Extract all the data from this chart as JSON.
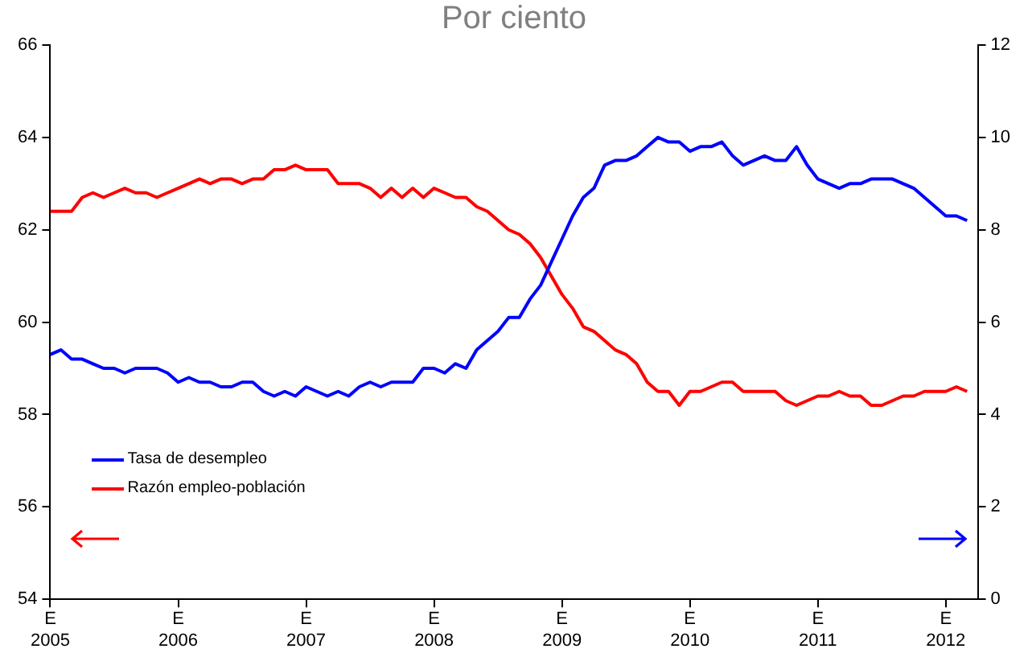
{
  "chart_data": {
    "type": "line",
    "title": "Por ciento",
    "x": [
      "2005-01",
      "2005-02",
      "2005-03",
      "2005-04",
      "2005-05",
      "2005-06",
      "2005-07",
      "2005-08",
      "2005-09",
      "2005-10",
      "2005-11",
      "2005-12",
      "2006-01",
      "2006-02",
      "2006-03",
      "2006-04",
      "2006-05",
      "2006-06",
      "2006-07",
      "2006-08",
      "2006-09",
      "2006-10",
      "2006-11",
      "2006-12",
      "2007-01",
      "2007-02",
      "2007-03",
      "2007-04",
      "2007-05",
      "2007-06",
      "2007-07",
      "2007-08",
      "2007-09",
      "2007-10",
      "2007-11",
      "2007-12",
      "2008-01",
      "2008-02",
      "2008-03",
      "2008-04",
      "2008-05",
      "2008-06",
      "2008-07",
      "2008-08",
      "2008-09",
      "2008-10",
      "2008-11",
      "2008-12",
      "2009-01",
      "2009-02",
      "2009-03",
      "2009-04",
      "2009-05",
      "2009-06",
      "2009-07",
      "2009-08",
      "2009-09",
      "2009-10",
      "2009-11",
      "2009-12",
      "2010-01",
      "2010-02",
      "2010-03",
      "2010-04",
      "2010-05",
      "2010-06",
      "2010-07",
      "2010-08",
      "2010-09",
      "2010-10",
      "2010-11",
      "2010-12",
      "2011-01",
      "2011-02",
      "2011-03",
      "2011-04",
      "2011-05",
      "2011-06",
      "2011-07",
      "2011-08",
      "2011-09",
      "2011-10",
      "2011-11",
      "2011-12",
      "2012-01",
      "2012-02",
      "2012-03"
    ],
    "series": [
      {
        "name": "Tasa de desempleo",
        "color": "#0000ff",
        "axis": "y2",
        "values": [
          5.3,
          5.4,
          5.2,
          5.2,
          5.1,
          5.0,
          5.0,
          4.9,
          5.0,
          5.0,
          5.0,
          4.9,
          4.7,
          4.8,
          4.7,
          4.7,
          4.6,
          4.6,
          4.7,
          4.7,
          4.5,
          4.4,
          4.5,
          4.4,
          4.6,
          4.5,
          4.4,
          4.5,
          4.4,
          4.6,
          4.7,
          4.6,
          4.7,
          4.7,
          4.7,
          5.0,
          5.0,
          4.9,
          5.1,
          5.0,
          5.4,
          5.6,
          5.8,
          6.1,
          6.1,
          6.5,
          6.8,
          7.3,
          7.8,
          8.3,
          8.7,
          8.9,
          9.4,
          9.5,
          9.5,
          9.6,
          9.8,
          10.0,
          9.9,
          9.9,
          9.7,
          9.8,
          9.8,
          9.9,
          9.6,
          9.4,
          9.5,
          9.6,
          9.5,
          9.5,
          9.8,
          9.4,
          9.1,
          9.0,
          8.9,
          9.0,
          9.0,
          9.1,
          9.1,
          9.1,
          9.0,
          8.9,
          8.7,
          8.5,
          8.3,
          8.3,
          8.2
        ]
      },
      {
        "name": "Razón empleo-población",
        "color": "#ff0000",
        "values": [
          62.4,
          62.4,
          62.4,
          62.7,
          62.8,
          62.7,
          62.8,
          62.9,
          62.8,
          62.8,
          62.7,
          62.8,
          62.9,
          63.0,
          63.1,
          63.0,
          63.1,
          63.1,
          63.0,
          63.1,
          63.1,
          63.3,
          63.3,
          63.4,
          63.3,
          63.3,
          63.3,
          63.0,
          63.0,
          63.0,
          62.9,
          62.7,
          62.9,
          62.7,
          62.9,
          62.7,
          62.9,
          62.8,
          62.7,
          62.7,
          62.5,
          62.4,
          62.2,
          62.0,
          61.9,
          61.7,
          61.4,
          61.0,
          60.6,
          60.3,
          59.9,
          59.8,
          59.6,
          59.4,
          59.3,
          59.1,
          58.7,
          58.5,
          58.5,
          58.2,
          58.5,
          58.5,
          58.6,
          58.7,
          58.7,
          58.5,
          58.5,
          58.5,
          58.5,
          58.3,
          58.2,
          58.3,
          58.4,
          58.4,
          58.5,
          58.4,
          58.4,
          58.2,
          58.2,
          58.3,
          58.4,
          58.4,
          58.5,
          58.5,
          58.5,
          58.6,
          58.5
        ]
      }
    ],
    "xlim": [
      "2005-01",
      "2012-04"
    ],
    "xticks": [
      {
        "value": "2005-01",
        "label": "E\n2005"
      },
      {
        "value": "2006-01",
        "label": "E\n2006"
      },
      {
        "value": "2007-01",
        "label": "E\n2007"
      },
      {
        "value": "2008-01",
        "label": "E\n2008"
      },
      {
        "value": "2009-01",
        "label": "E\n2009"
      },
      {
        "value": "2010-01",
        "label": "E\n2010"
      },
      {
        "value": "2011-01",
        "label": "E\n2011"
      },
      {
        "value": "2012-01",
        "label": "E\n2012"
      }
    ],
    "ylim": [
      54,
      66
    ],
    "yticks": [
      54,
      56,
      58,
      60,
      62,
      64,
      66
    ],
    "y2lim": [
      0,
      12
    ],
    "y2ticks": [
      0,
      2,
      4,
      6,
      8,
      10,
      12
    ],
    "grid": false,
    "legend": "bottom left",
    "marker": "none",
    "line_style": "solid"
  }
}
